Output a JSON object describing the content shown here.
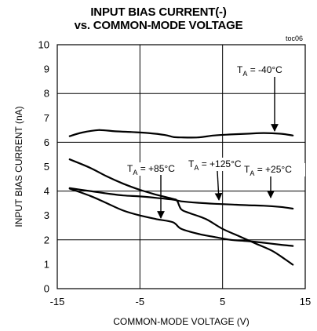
{
  "chart_data": {
    "type": "line",
    "title_line1": "INPUT BIAS CURRENT(-)",
    "title_line2": "vs. COMMON-MODE VOLTAGE",
    "figure_code": "toc06",
    "xlabel": "COMMON-MODE VOLTAGE (V)",
    "ylabel": "INPUT BIAS CURRENT (nA)",
    "xlim": [
      -15,
      15
    ],
    "ylim": [
      0,
      10
    ],
    "x_ticks": [
      -15,
      -5,
      5,
      15
    ],
    "y_ticks": [
      0,
      1,
      2,
      3,
      4,
      5,
      6,
      7,
      8,
      9,
      10
    ],
    "grid": true,
    "series": [
      {
        "name": "TA = -40°C",
        "label_parts": [
          "T",
          "A",
          " = -40°C"
        ],
        "x": [
          -13.5,
          -12,
          -10,
          -8,
          -6,
          -4,
          -2,
          -1,
          0,
          2,
          4,
          6,
          8,
          10,
          12,
          13.5
        ],
        "y": [
          6.25,
          6.4,
          6.5,
          6.45,
          6.42,
          6.38,
          6.3,
          6.22,
          6.2,
          6.2,
          6.28,
          6.32,
          6.35,
          6.38,
          6.35,
          6.28
        ]
      },
      {
        "name": "TA = +85°C",
        "label_parts": [
          "T",
          "A",
          " = +85°C"
        ],
        "x": [
          -13.5,
          -11,
          -9,
          -7,
          -5,
          -3,
          -1,
          0,
          2,
          4,
          6,
          8,
          10,
          12,
          13.5
        ],
        "y": [
          4.1,
          3.8,
          3.5,
          3.2,
          3.0,
          2.85,
          2.72,
          2.45,
          2.25,
          2.12,
          2.0,
          1.95,
          1.88,
          1.8,
          1.75
        ]
      },
      {
        "name": "TA = +125°C",
        "label_parts": [
          "T",
          "A",
          " = +125°C"
        ],
        "x": [
          -13.5,
          -11,
          -9,
          -7,
          -5,
          -3,
          -1,
          -0.5,
          0,
          1,
          3,
          5,
          7,
          9,
          11,
          12.5,
          13.5
        ],
        "y": [
          5.3,
          4.95,
          4.6,
          4.3,
          4.05,
          3.85,
          3.68,
          3.6,
          3.25,
          3.1,
          2.85,
          2.45,
          2.15,
          1.85,
          1.55,
          1.22,
          0.98
        ]
      },
      {
        "name": "TA = +25°C",
        "label_parts": [
          "T",
          "A",
          " = +25°C"
        ],
        "x": [
          -13.5,
          -11,
          -9,
          -7,
          -5,
          -3,
          -1,
          0,
          2,
          4,
          6,
          8,
          10,
          12,
          13.5
        ],
        "y": [
          4.12,
          4.0,
          3.9,
          3.82,
          3.78,
          3.72,
          3.65,
          3.58,
          3.52,
          3.48,
          3.45,
          3.42,
          3.4,
          3.35,
          3.28
        ]
      }
    ]
  }
}
